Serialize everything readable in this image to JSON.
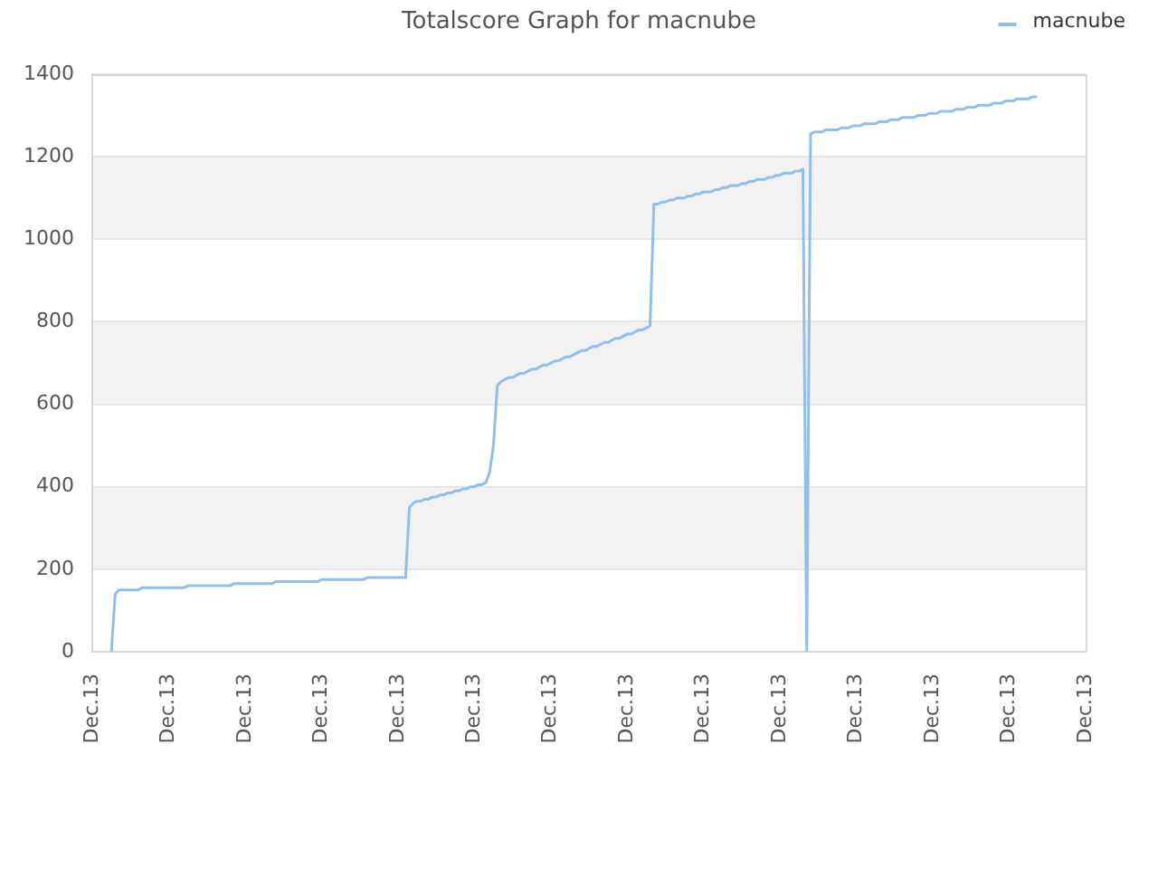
{
  "chart_data": {
    "type": "line",
    "title": "Totalscore Graph for macnube",
    "categories": [
      "Dec.13",
      null,
      null,
      null,
      null,
      null,
      null,
      null,
      null,
      null,
      null,
      null,
      null,
      null,
      null,
      null,
      null,
      null,
      null,
      null,
      "Dec.13",
      null,
      null,
      null,
      null,
      null,
      null,
      null,
      null,
      null,
      null,
      null,
      null,
      null,
      null,
      null,
      null,
      null,
      null,
      null,
      "Dec.13",
      null,
      null,
      null,
      null,
      null,
      null,
      null,
      null,
      null,
      null,
      null,
      null,
      null,
      null,
      null,
      null,
      null,
      null,
      null,
      "Dec.13",
      null,
      null,
      null,
      null,
      null,
      null,
      null,
      null,
      null,
      null,
      null,
      null,
      null,
      null,
      null,
      null,
      null,
      null,
      null,
      "Dec.13",
      null,
      null,
      null,
      null,
      null,
      null,
      null,
      null,
      null,
      null,
      null,
      null,
      null,
      null,
      null,
      null,
      null,
      null,
      null,
      "Dec.13",
      null,
      null,
      null,
      null,
      null,
      null,
      null,
      null,
      null,
      null,
      null,
      null,
      null,
      null,
      null,
      null,
      null,
      null,
      null,
      "Dec.13",
      null,
      null,
      null,
      null,
      null,
      null,
      null,
      null,
      null,
      null,
      null,
      null,
      null,
      null,
      null,
      null,
      null,
      null,
      null,
      "Dec.13",
      null,
      null,
      null,
      null,
      null,
      null,
      null,
      null,
      null,
      null,
      null,
      null,
      null,
      null,
      null,
      null,
      null,
      null,
      null,
      "Dec.13",
      null,
      null,
      null,
      null,
      null,
      null,
      null,
      null,
      null,
      null,
      null,
      null,
      null,
      null,
      null,
      null,
      null,
      null,
      null,
      "Dec.13",
      null,
      null,
      null,
      null,
      null,
      null,
      null,
      null,
      null,
      null,
      null,
      null,
      null,
      null,
      null,
      null,
      null,
      null,
      null,
      "Dec.13",
      null,
      null,
      null,
      null,
      null,
      null,
      null,
      null,
      null,
      null,
      null,
      null,
      null,
      null,
      null,
      null,
      null,
      null,
      null,
      "Dec.13",
      null,
      null,
      null,
      null,
      null,
      null,
      null,
      null,
      null,
      null,
      null,
      null,
      null,
      null,
      null,
      null,
      null,
      null,
      null,
      "Dec.13",
      null,
      null,
      null,
      null,
      null,
      null,
      null,
      null,
      null,
      null,
      null,
      null,
      null,
      null,
      null,
      null,
      null,
      null,
      null,
      "Dec.13"
    ],
    "series": [
      {
        "name": "macnube",
        "color": "#8fbff0",
        "values": [
          null,
          null,
          null,
          null,
          null,
          0,
          140,
          150,
          150,
          150,
          150,
          150,
          150,
          155,
          155,
          155,
          155,
          155,
          155,
          155,
          155,
          155,
          155,
          155,
          155,
          160,
          160,
          160,
          160,
          160,
          160,
          160,
          160,
          160,
          160,
          160,
          160,
          165,
          165,
          165,
          165,
          165,
          165,
          165,
          165,
          165,
          165,
          165,
          170,
          170,
          170,
          170,
          170,
          170,
          170,
          170,
          170,
          170,
          170,
          170,
          175,
          175,
          175,
          175,
          175,
          175,
          175,
          175,
          175,
          175,
          175,
          175,
          180,
          180,
          180,
          180,
          180,
          180,
          180,
          180,
          180,
          180,
          180,
          350,
          360,
          365,
          365,
          370,
          370,
          375,
          375,
          380,
          380,
          385,
          385,
          390,
          390,
          395,
          395,
          400,
          400,
          405,
          405,
          410,
          435,
          500,
          645,
          655,
          660,
          665,
          665,
          670,
          675,
          675,
          680,
          685,
          685,
          690,
          695,
          695,
          700,
          705,
          705,
          710,
          715,
          715,
          720,
          725,
          730,
          730,
          735,
          740,
          740,
          745,
          750,
          750,
          755,
          760,
          760,
          765,
          770,
          770,
          775,
          780,
          780,
          785,
          790,
          1085,
          1085,
          1090,
          1090,
          1095,
          1095,
          1100,
          1100,
          1100,
          1105,
          1105,
          1110,
          1110,
          1115,
          1115,
          1115,
          1120,
          1120,
          1125,
          1125,
          1130,
          1130,
          1130,
          1135,
          1135,
          1140,
          1140,
          1145,
          1145,
          1145,
          1150,
          1150,
          1155,
          1155,
          1160,
          1160,
          1160,
          1165,
          1165,
          1170,
          0,
          1255,
          1260,
          1260,
          1260,
          1265,
          1265,
          1265,
          1265,
          1270,
          1270,
          1270,
          1275,
          1275,
          1275,
          1280,
          1280,
          1280,
          1280,
          1285,
          1285,
          1285,
          1290,
          1290,
          1290,
          1295,
          1295,
          1295,
          1295,
          1300,
          1300,
          1300,
          1305,
          1305,
          1305,
          1310,
          1310,
          1310,
          1310,
          1315,
          1315,
          1315,
          1320,
          1320,
          1320,
          1325,
          1325,
          1325,
          1325,
          1330,
          1330,
          1330,
          1335,
          1335,
          1335,
          1340,
          1340,
          1340,
          1340,
          1345,
          1345,
          null,
          null,
          null,
          null,
          null,
          null,
          null,
          null,
          null,
          null,
          null,
          null,
          null
        ]
      }
    ],
    "ylim": [
      0,
      1400
    ],
    "yticks": [
      0,
      200,
      400,
      600,
      800,
      1000,
      1200,
      1400
    ],
    "grid": "y",
    "bands": [
      {
        "axis": "y",
        "from": 200,
        "to": 400,
        "color": "#f2f2f2"
      },
      {
        "axis": "y",
        "from": 600,
        "to": 800,
        "color": "#f2f2f2"
      },
      {
        "axis": "y",
        "from": 1000,
        "to": 1200,
        "color": "#f2f2f2"
      }
    ],
    "legend": "top right",
    "marker": "none",
    "line_style": "solid"
  }
}
